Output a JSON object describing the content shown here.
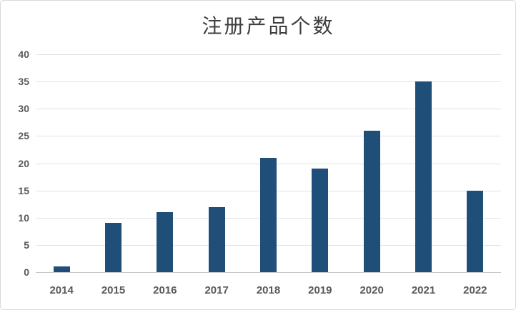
{
  "chart_data": {
    "type": "bar",
    "title": "注册产品个数",
    "categories": [
      "2014",
      "2015",
      "2016",
      "2017",
      "2018",
      "2019",
      "2020",
      "2021",
      "2022"
    ],
    "values": [
      1,
      9,
      11,
      12,
      21,
      19,
      26,
      35,
      15
    ],
    "xlabel": "",
    "ylabel": "",
    "ylim": [
      0,
      40
    ],
    "yticks": [
      0,
      5,
      10,
      15,
      20,
      25,
      30,
      35,
      40
    ],
    "grid": true,
    "legend": "none",
    "colors": {
      "bar": "#1f4e79",
      "gridline": "#e2e2e2",
      "axis_line": "#c8c8c8",
      "tick_label": "#595959",
      "title": "#3f3f3f",
      "frame_border": "#d8d8d8",
      "background": "#ffffff"
    }
  }
}
